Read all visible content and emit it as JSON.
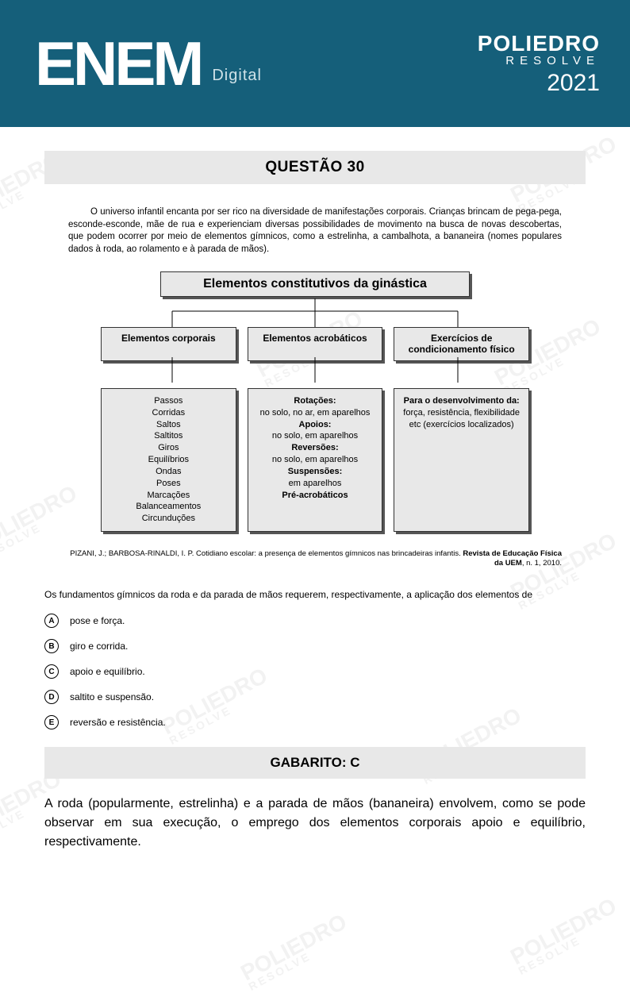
{
  "colors": {
    "header_bg": "#155f7a",
    "box_bg": "#e8e8e8",
    "watermark": "#f2f2f2",
    "text": "#000000",
    "white": "#ffffff"
  },
  "header": {
    "logo_main": "ENEM",
    "logo_sub": "Digital",
    "brand_top": "POLIEDRO",
    "brand_sub": "RESOLVE",
    "year": "2021"
  },
  "watermark": {
    "line1": "POLIEDRO",
    "line2": "RESOLVE"
  },
  "question": {
    "title": "QUESTÃO 30",
    "intro": "O universo infantil encanta por ser rico na diversidade de manifestações corporais. Crianças brincam de pega-pega, esconde-esconde, mãe de rua e experienciam diversas possibilidades de movimento na busca de novas descobertas, que podem ocorrer por meio de elementos gímnicos, como a estrelinha, a cambalhota, a bananeira (nomes populares dados à roda, ao rolamento e à parada de mãos).",
    "diagram": {
      "title": "Elementos constitutivos da ginástica",
      "branches": [
        {
          "header": "Elementos corporais",
          "content_lines": [
            "Passos",
            "Corridas",
            "Saltos",
            "Saltitos",
            "Giros",
            "Equilíbrios",
            "Ondas",
            "Poses",
            "Marcações",
            "Balanceamentos",
            "Circunduções"
          ]
        },
        {
          "header": "Elementos acrobáticos",
          "content_html": "<b>Rotações:</b><br>no solo, no ar, em aparelhos<br><b>Apoios:</b><br>no solo, em aparelhos<br><b>Reversões:</b><br>no solo, em aparelhos<br><b>Suspensões:</b><br>em aparelhos<br><b>Pré-acrobáticos</b>"
        },
        {
          "header": "Exercícios de condicionamento físico",
          "content_html": "<b>Para o desenvolvimento da:</b> força, resistência, flexibilidade etc (exercícios localizados)"
        }
      ]
    },
    "citation_plain": "PIZANI, J.; BARBOSA-RINALDI, I. P. Cotidiano escolar: a presença de elementos gímnicos nas brincadeiras infantis. ",
    "citation_bold": "Revista de Educação Física da UEM",
    "citation_tail": ", n. 1, 2010.",
    "stem": "Os fundamentos gímnicos da roda e da parada de mãos requerem, respectivamente, a aplicação dos elementos de",
    "options": [
      {
        "letter": "A",
        "text": "pose e força."
      },
      {
        "letter": "B",
        "text": "giro e corrida."
      },
      {
        "letter": "C",
        "text": "apoio e equilíbrio."
      },
      {
        "letter": "D",
        "text": "saltito e suspensão."
      },
      {
        "letter": "E",
        "text": "reversão e resistência."
      }
    ],
    "answer_label": "GABARITO: C",
    "explanation": "A roda (popularmente, estrelinha) e a parada de mãos (bananeira) envolvem, como se pode observar em sua execução, o emprego dos elementos corporais apoio e equilíbrio, respectivamente."
  }
}
